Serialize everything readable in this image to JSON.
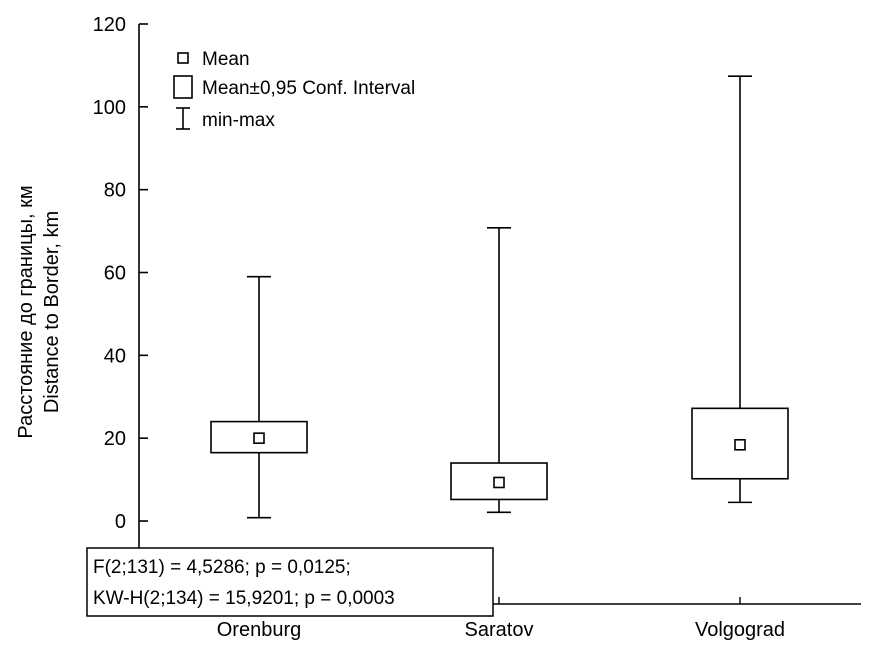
{
  "chart_data": {
    "type": "box",
    "categories": [
      "Orenburg",
      "Saratov",
      "Volgograd"
    ],
    "series": [
      {
        "mean": [
          20.0,
          9.3,
          18.4
        ],
        "ci_low": [
          16.5,
          5.2,
          10.2
        ],
        "ci_high": [
          24.0,
          14.0,
          27.2
        ],
        "min": [
          0.8,
          2.1,
          4.5
        ],
        "max": [
          59.0,
          70.8,
          107.4
        ]
      }
    ],
    "ylabel_lines": [
      "Расстояние до границы, км",
      "Distance to Border, km"
    ],
    "xlabel": "",
    "ylim": [
      0,
      120
    ],
    "yticks": [
      0,
      20,
      40,
      60,
      80,
      100,
      120
    ],
    "grid": false,
    "legend": {
      "placement": "top-left",
      "entries": [
        "Mean",
        "Mean±0,95 Conf. Interval",
        "min-max"
      ]
    },
    "annotation": {
      "lines": [
        "F(2;131) = 4,5286; p = 0,0125;",
        "KW-H(2;134) = 15,9201; p = 0,0003"
      ]
    }
  }
}
